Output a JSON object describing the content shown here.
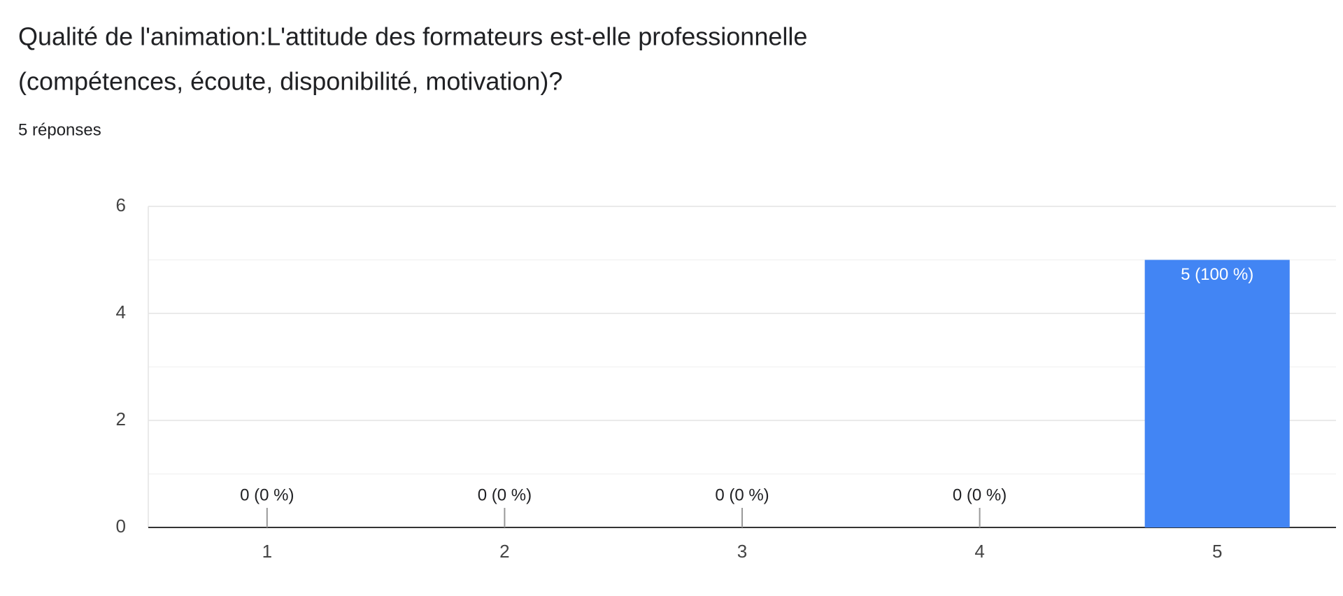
{
  "chart_data": {
    "type": "bar",
    "title": [
      "Qualité de l'animation:L'attitude des formateurs est-elle professionnelle",
      "(compétences, écoute, disponibilité, motivation)?"
    ],
    "subtitle": "5 réponses",
    "categories": [
      "1",
      "2",
      "3",
      "4",
      "5"
    ],
    "values": [
      0,
      0,
      0,
      0,
      5
    ],
    "value_labels": [
      "0 (0 %)",
      "0 (0 %)",
      "0 (0 %)",
      "0 (0 %)",
      "5 (100 %)"
    ],
    "color": "#4285f4",
    "ylim": [
      0,
      6
    ],
    "yticks": [
      0,
      2,
      4,
      6
    ],
    "minor_yticks": [
      1,
      3,
      5
    ],
    "grid": true
  }
}
